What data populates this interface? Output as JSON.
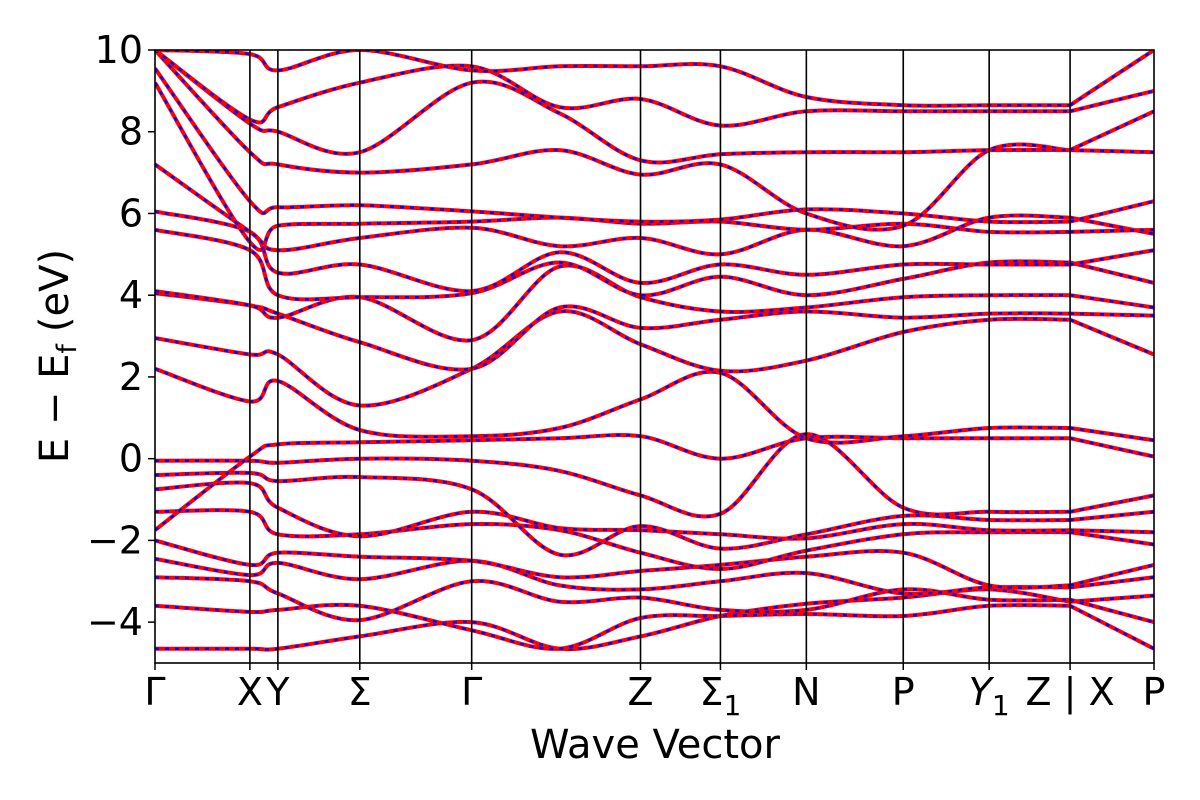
{
  "chart_data": {
    "type": "line",
    "title": "",
    "xlabel": "Wave Vector",
    "ylabel": "E − E",
    "ylabel_sub": "f",
    "ylabel_unit": "(eV)",
    "ylim": [
      -5,
      10
    ],
    "yticks": [
      {
        "value": 10,
        "label": "10"
      },
      {
        "value": 8,
        "label": "8"
      },
      {
        "value": 6,
        "label": "6"
      },
      {
        "value": 4,
        "label": "4"
      },
      {
        "value": 2,
        "label": "2"
      },
      {
        "value": 0,
        "label": "0"
      },
      {
        "value": -2,
        "label": "−2"
      },
      {
        "value": -4,
        "label": "−4"
      }
    ],
    "kpath": [
      {
        "k": 0.0,
        "label": "Γ",
        "sub": ""
      },
      {
        "k": 0.95,
        "label": "X",
        "sub": ""
      },
      {
        "k": 1.23,
        "label": "Y",
        "sub": ""
      },
      {
        "k": 2.05,
        "label": "Σ",
        "sub": ""
      },
      {
        "k": 3.17,
        "label": "Γ",
        "sub": ""
      },
      {
        "k": 4.86,
        "label": "Z",
        "sub": ""
      },
      {
        "k": 5.66,
        "label": "Σ",
        "sub": "1"
      },
      {
        "k": 6.52,
        "label": "N",
        "sub": ""
      },
      {
        "k": 7.49,
        "label": "P",
        "sub": ""
      },
      {
        "k": 8.35,
        "label": "Y",
        "sub": "1"
      },
      {
        "k": 9.16,
        "label": "Z",
        "sub": ""
      },
      {
        "k": 9.16,
        "label": "|",
        "sub": ""
      },
      {
        "k": 9.16,
        "label": "X",
        "sub": ""
      },
      {
        "k": 10.0,
        "label": "P",
        "sub": ""
      }
    ],
    "xlim": [
      0,
      10.0
    ],
    "line_colors": {
      "band": "#ff0000",
      "overlay": "#0000ff",
      "frame": "#000000"
    },
    "series": [
      {
        "values": [
          -4.65,
          -4.65,
          -4.65,
          -4.35,
          -4.0,
          -4.65,
          -4.35,
          -3.85,
          -3.55,
          -3.4,
          -3.2,
          -3.5,
          -3.5,
          -3.35
        ]
      },
      {
        "values": [
          -3.6,
          -3.75,
          -3.7,
          -3.6,
          -4.2,
          -4.65,
          -3.9,
          -3.85,
          -3.8,
          -3.85,
          -3.6,
          -3.6,
          -3.6,
          -4.65
        ]
      },
      {
        "values": [
          -2.9,
          -3.0,
          -3.3,
          -3.95,
          -3.0,
          -3.5,
          -3.4,
          -3.7,
          -3.7,
          -3.2,
          -3.45,
          -3.45,
          -3.45,
          -4.0
        ]
      },
      {
        "values": [
          -2.45,
          -2.85,
          -2.55,
          -2.95,
          -2.5,
          -3.1,
          -3.2,
          -3.0,
          -2.8,
          -3.3,
          -3.15,
          -3.15,
          -3.15,
          -2.9
        ]
      },
      {
        "values": [
          -2.0,
          -2.6,
          -2.3,
          -2.4,
          -2.5,
          -2.9,
          -2.75,
          -2.6,
          -2.4,
          -2.3,
          -3.1,
          -3.1,
          -3.1,
          -2.6
        ]
      },
      {
        "values": [
          -1.3,
          -1.3,
          -1.85,
          -1.85,
          -1.6,
          -1.75,
          -2.3,
          -2.7,
          -2.25,
          -1.85,
          -1.8,
          -1.8,
          -1.8,
          -2.1
        ]
      },
      {
        "values": [
          -0.75,
          -0.6,
          -1.2,
          -1.9,
          -1.3,
          -1.7,
          -1.75,
          -1.85,
          -1.95,
          -1.6,
          -1.75,
          -1.75,
          -1.75,
          -1.8
        ]
      },
      {
        "values": [
          -0.4,
          -0.35,
          -0.55,
          -0.45,
          -0.75,
          -2.35,
          -1.65,
          -2.2,
          -1.85,
          -1.4,
          -1.5,
          -1.5,
          -1.5,
          -1.3
        ]
      },
      {
        "values": [
          -0.05,
          -0.05,
          -0.1,
          0.0,
          -0.05,
          -0.3,
          -0.9,
          -1.35,
          0.6,
          -1.2,
          -1.3,
          -1.3,
          -1.3,
          -0.9
        ]
      },
      {
        "values": [
          -1.75,
          0.05,
          0.35,
          0.4,
          0.45,
          0.5,
          0.55,
          0.0,
          0.5,
          0.5,
          0.5,
          0.5,
          0.5,
          0.05
        ]
      },
      {
        "values": [
          2.2,
          1.4,
          1.9,
          0.7,
          0.55,
          0.75,
          1.45,
          2.1,
          0.5,
          0.55,
          0.75,
          0.75,
          0.75,
          0.45
        ]
      },
      {
        "values": [
          2.95,
          2.55,
          2.55,
          1.3,
          2.2,
          3.6,
          2.8,
          2.15,
          2.4,
          3.1,
          3.4,
          3.4,
          3.4,
          2.55
        ]
      },
      {
        "values": [
          4.05,
          3.75,
          3.55,
          2.85,
          2.2,
          3.7,
          3.2,
          3.4,
          3.6,
          3.45,
          3.55,
          3.55,
          3.55,
          3.5
        ]
      },
      {
        "values": [
          4.1,
          3.75,
          3.45,
          3.95,
          2.9,
          4.7,
          3.95,
          3.6,
          3.7,
          3.95,
          4.0,
          4.0,
          4.0,
          3.7
        ]
      },
      {
        "values": [
          5.6,
          5.1,
          4.0,
          3.95,
          4.05,
          4.8,
          4.0,
          4.45,
          4.0,
          4.4,
          4.8,
          4.8,
          4.8,
          4.3
        ]
      },
      {
        "values": [
          6.05,
          5.55,
          4.55,
          4.75,
          4.1,
          5.05,
          4.3,
          4.75,
          4.5,
          4.75,
          4.75,
          4.75,
          4.75,
          5.1
        ]
      },
      {
        "values": [
          7.2,
          5.55,
          5.1,
          5.4,
          5.65,
          5.2,
          5.4,
          5.0,
          5.6,
          5.2,
          5.9,
          5.9,
          5.9,
          5.5
        ]
      },
      {
        "values": [
          9.2,
          5.3,
          5.7,
          5.75,
          5.8,
          5.9,
          5.75,
          5.8,
          5.6,
          5.75,
          5.55,
          5.55,
          5.55,
          5.6
        ]
      },
      {
        "values": [
          9.55,
          6.3,
          6.15,
          6.2,
          6.05,
          5.9,
          5.8,
          5.85,
          6.1,
          6.0,
          5.8,
          5.8,
          5.8,
          6.3
        ]
      },
      {
        "values": [
          10.0,
          7.5,
          7.2,
          7.0,
          7.2,
          7.55,
          6.95,
          7.2,
          6.0,
          5.7,
          7.55,
          7.55,
          7.55,
          7.5
        ]
      },
      {
        "values": [
          10.0,
          8.2,
          8.0,
          7.5,
          9.2,
          8.45,
          7.3,
          7.45,
          7.5,
          7.5,
          7.55,
          7.55,
          7.55,
          8.5
        ]
      },
      {
        "values": [
          10.0,
          8.3,
          8.6,
          9.2,
          9.6,
          8.6,
          8.8,
          8.15,
          8.5,
          8.5,
          8.5,
          8.5,
          8.5,
          9.0
        ]
      },
      {
        "values": [
          10.0,
          9.9,
          9.5,
          10.0,
          9.5,
          9.6,
          9.6,
          9.6,
          8.85,
          8.65,
          8.65,
          8.65,
          8.65,
          10.0
        ]
      }
    ]
  }
}
